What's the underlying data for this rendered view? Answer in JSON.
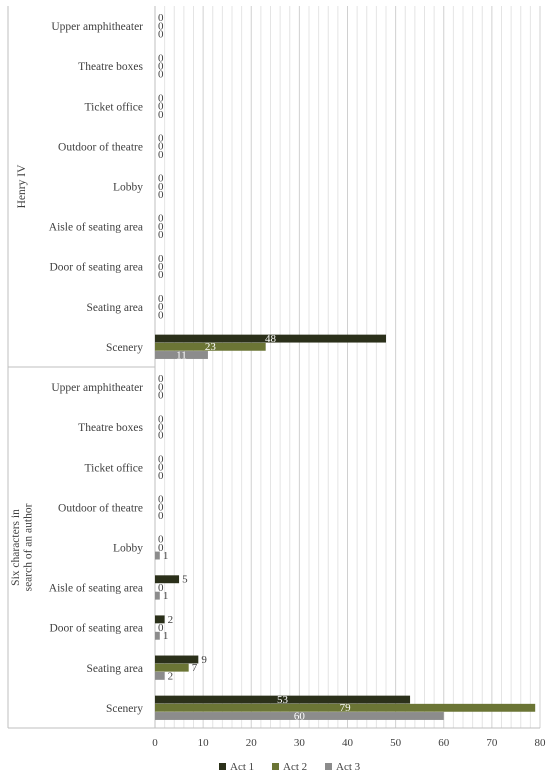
{
  "chart_data": {
    "type": "bar",
    "orientation": "horizontal",
    "title": "",
    "xlabel": "",
    "ylabel": "",
    "xlim": [
      0,
      80
    ],
    "xticks": [
      0,
      10,
      20,
      30,
      40,
      50,
      60,
      70,
      80
    ],
    "grid": true,
    "legend_position": "bottom",
    "data_labels": true,
    "groups": [
      {
        "name": "Henry IV",
        "categories": [
          "Upper amphitheater",
          "Theatre boxes",
          "Ticket office",
          "Outdoor of theatre",
          "Lobby",
          "Aisle of seating area",
          "Door of seating area",
          "Seating area",
          "Scenery"
        ],
        "series": [
          {
            "name": "Act 1",
            "color": "#2b301a",
            "values": [
              0,
              0,
              0,
              0,
              0,
              0,
              0,
              0,
              48
            ]
          },
          {
            "name": "Act 2",
            "color": "#6b7535",
            "values": [
              0,
              0,
              0,
              0,
              0,
              0,
              0,
              0,
              23
            ]
          },
          {
            "name": "Act 3",
            "color": "#8c8c8c",
            "values": [
              0,
              0,
              0,
              0,
              0,
              0,
              0,
              0,
              11
            ]
          }
        ]
      },
      {
        "name": "Six characters in search of an author",
        "categories": [
          "Upper amphitheater",
          "Theatre boxes",
          "Ticket office",
          "Outdoor of theatre",
          "Lobby",
          "Aisle of seating area",
          "Door of seating area",
          "Seating area",
          "Scenery"
        ],
        "series": [
          {
            "name": "Act 1",
            "color": "#2b301a",
            "values": [
              0,
              0,
              0,
              0,
              0,
              5,
              2,
              9,
              53
            ]
          },
          {
            "name": "Act 2",
            "color": "#6b7535",
            "values": [
              0,
              0,
              0,
              0,
              0,
              0,
              0,
              7,
              79
            ]
          },
          {
            "name": "Act 3",
            "color": "#8c8c8c",
            "values": [
              0,
              0,
              0,
              0,
              1,
              1,
              1,
              2,
              60
            ]
          }
        ]
      }
    ],
    "legend": [
      "Act 1",
      "Act 2",
      "Act 3"
    ]
  }
}
